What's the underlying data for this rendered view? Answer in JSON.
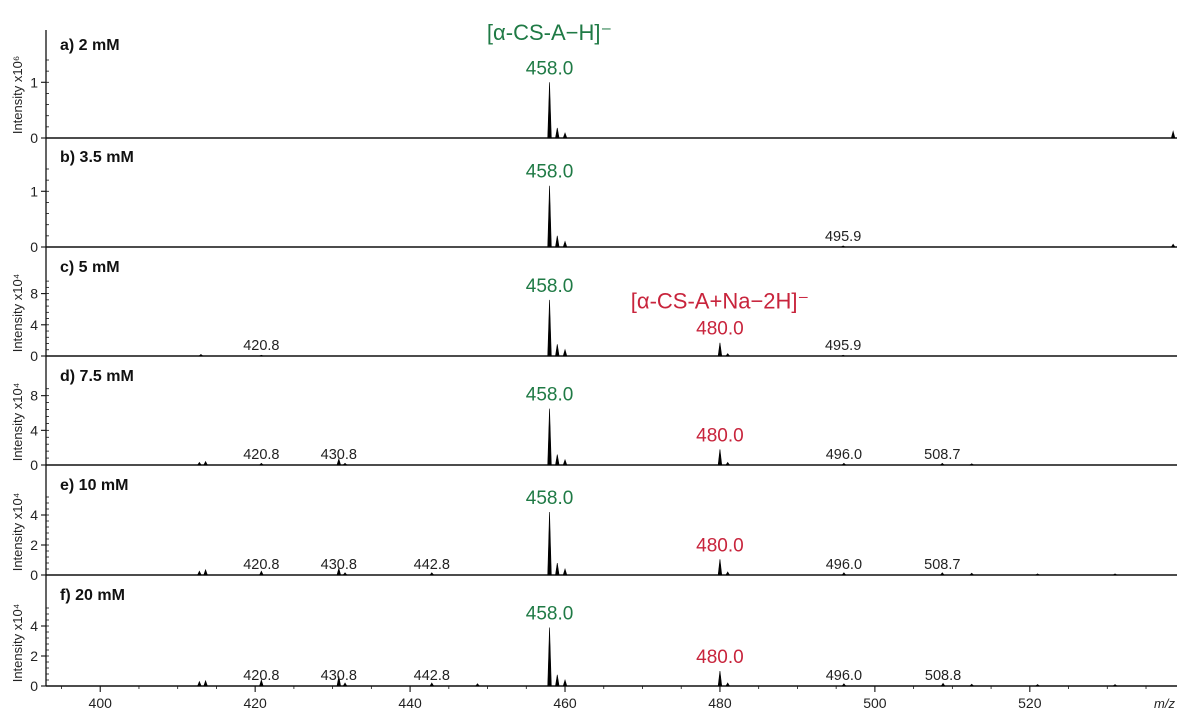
{
  "colors": {
    "green": "#1f7a45",
    "red": "#c8243c",
    "axis": "#111111",
    "trace": "#000000"
  },
  "chart_data": {
    "type": "line",
    "x_axis": {
      "label": "m/z",
      "range": [
        393,
        539
      ],
      "ticks": [
        400,
        420,
        440,
        460,
        480,
        500,
        520
      ],
      "tick_labels": [
        "400",
        "420",
        "440",
        "460",
        "480",
        "500",
        "520"
      ]
    },
    "ion_labels": [
      {
        "text": "[α-CS-A−H]⁻",
        "color": "green",
        "panel": 0,
        "x": 458.0
      },
      {
        "text": "[α-CS-A+Na−2H]⁻",
        "color": "red",
        "panel": 2,
        "x": 480.0
      }
    ],
    "panels": [
      {
        "label": "a) 2 mM",
        "y_title": "Intensity x10⁶",
        "ylim": [
          0,
          1.4
        ],
        "yticks": [
          0,
          1
        ],
        "ytick_labels": [
          "0",
          "1"
        ],
        "peaks": [
          [
            458.0,
            1.0
          ],
          [
            459.0,
            0.18
          ],
          [
            460.0,
            0.09
          ],
          [
            538.5,
            0.12
          ]
        ],
        "annotations": [
          {
            "x": 458.0,
            "text": "458.0",
            "color": "green"
          }
        ]
      },
      {
        "label": "b) 3.5 mM",
        "y_title": "",
        "ylim": [
          0,
          1.4
        ],
        "yticks": [
          0,
          1
        ],
        "ytick_labels": [
          "0",
          "1"
        ],
        "peaks": [
          [
            458.0,
            1.1
          ],
          [
            459.0,
            0.2
          ],
          [
            460.0,
            0.1
          ],
          [
            495.9,
            0.02
          ],
          [
            538.5,
            0.05
          ]
        ],
        "annotations": [
          {
            "x": 458.0,
            "text": "458.0",
            "color": "green"
          },
          {
            "x": 495.9,
            "text": "495.9",
            "color": "black"
          }
        ]
      },
      {
        "label": "c) 5 mM",
        "y_title": "Intensity x10⁴",
        "ylim": [
          0,
          10
        ],
        "yticks": [
          0,
          4,
          8
        ],
        "ytick_labels": [
          "0",
          "4",
          "8"
        ],
        "peaks": [
          [
            413.0,
            0.2
          ],
          [
            420.8,
            0.1
          ],
          [
            458.0,
            7.2
          ],
          [
            459.0,
            1.5
          ],
          [
            460.0,
            0.8
          ],
          [
            480.0,
            1.7
          ],
          [
            481.0,
            0.3
          ],
          [
            495.9,
            0.1
          ]
        ],
        "annotations": [
          {
            "x": 420.8,
            "text": "420.8",
            "color": "black"
          },
          {
            "x": 458.0,
            "text": "458.0",
            "color": "green"
          },
          {
            "x": 480.0,
            "text": "480.0",
            "color": "red"
          },
          {
            "x": 495.9,
            "text": "495.9",
            "color": "black"
          }
        ]
      },
      {
        "label": "d) 7.5 mM",
        "y_title": "Intensity x10⁴",
        "ylim": [
          0,
          9
        ],
        "yticks": [
          0,
          4,
          8
        ],
        "ytick_labels": [
          "0",
          "4",
          "8"
        ],
        "peaks": [
          [
            412.8,
            0.3
          ],
          [
            413.6,
            0.4
          ],
          [
            420.8,
            0.2
          ],
          [
            430.8,
            0.7
          ],
          [
            431.6,
            0.2
          ],
          [
            458.0,
            6.5
          ],
          [
            459.0,
            1.2
          ],
          [
            460.0,
            0.6
          ],
          [
            480.0,
            1.8
          ],
          [
            481.0,
            0.3
          ],
          [
            496.0,
            0.2
          ],
          [
            508.7,
            0.2
          ],
          [
            512.5,
            0.15
          ]
        ],
        "annotations": [
          {
            "x": 420.8,
            "text": "420.8",
            "color": "black"
          },
          {
            "x": 430.8,
            "text": "430.8",
            "color": "black"
          },
          {
            "x": 458.0,
            "text": "458.0",
            "color": "green"
          },
          {
            "x": 480.0,
            "text": "480.0",
            "color": "red"
          },
          {
            "x": 496.0,
            "text": "496.0",
            "color": "black"
          },
          {
            "x": 508.7,
            "text": "508.7",
            "color": "black"
          }
        ]
      },
      {
        "label": "e) 10 mM",
        "y_title": "Intensity x10⁴",
        "ylim": [
          0,
          5.2
        ],
        "yticks": [
          0,
          2,
          4
        ],
        "ytick_labels": [
          "0",
          "2",
          "4"
        ],
        "peaks": [
          [
            412.8,
            0.25
          ],
          [
            413.6,
            0.35
          ],
          [
            420.8,
            0.25
          ],
          [
            430.8,
            0.45
          ],
          [
            431.6,
            0.15
          ],
          [
            442.8,
            0.15
          ],
          [
            458.0,
            4.2
          ],
          [
            459.0,
            0.8
          ],
          [
            460.0,
            0.4
          ],
          [
            480.0,
            1.05
          ],
          [
            481.0,
            0.2
          ],
          [
            496.0,
            0.15
          ],
          [
            508.7,
            0.15
          ],
          [
            512.5,
            0.12
          ],
          [
            521.0,
            0.08
          ],
          [
            531.0,
            0.08
          ]
        ],
        "annotations": [
          {
            "x": 420.8,
            "text": "420.8",
            "color": "black"
          },
          {
            "x": 430.8,
            "text": "430.8",
            "color": "black"
          },
          {
            "x": 442.8,
            "text": "442.8",
            "color": "black"
          },
          {
            "x": 458.0,
            "text": "458.0",
            "color": "green"
          },
          {
            "x": 480.0,
            "text": "480.0",
            "color": "red"
          },
          {
            "x": 496.0,
            "text": "496.0",
            "color": "black"
          },
          {
            "x": 508.7,
            "text": "508.7",
            "color": "black"
          }
        ]
      },
      {
        "label": "f) 20 mM",
        "y_title": "Intensity x10⁴",
        "ylim": [
          0,
          5.2
        ],
        "yticks": [
          0,
          2,
          4
        ],
        "ytick_labels": [
          "0",
          "2",
          "4"
        ],
        "peaks": [
          [
            412.8,
            0.3
          ],
          [
            413.6,
            0.35
          ],
          [
            420.8,
            0.4
          ],
          [
            430.8,
            0.65
          ],
          [
            431.6,
            0.2
          ],
          [
            442.8,
            0.2
          ],
          [
            448.7,
            0.15
          ],
          [
            458.0,
            3.9
          ],
          [
            459.0,
            0.75
          ],
          [
            460.0,
            0.4
          ],
          [
            480.0,
            1.0
          ],
          [
            481.0,
            0.2
          ],
          [
            496.0,
            0.15
          ],
          [
            508.8,
            0.18
          ],
          [
            512.5,
            0.12
          ],
          [
            521.0,
            0.1
          ],
          [
            531.0,
            0.1
          ]
        ],
        "annotations": [
          {
            "x": 420.8,
            "text": "420.8",
            "color": "black"
          },
          {
            "x": 430.8,
            "text": "430.8",
            "color": "black"
          },
          {
            "x": 442.8,
            "text": "442.8",
            "color": "black"
          },
          {
            "x": 458.0,
            "text": "458.0",
            "color": "green"
          },
          {
            "x": 480.0,
            "text": "480.0",
            "color": "red"
          },
          {
            "x": 496.0,
            "text": "496.0",
            "color": "black"
          },
          {
            "x": 508.8,
            "text": "508.8",
            "color": "black"
          }
        ]
      }
    ]
  }
}
